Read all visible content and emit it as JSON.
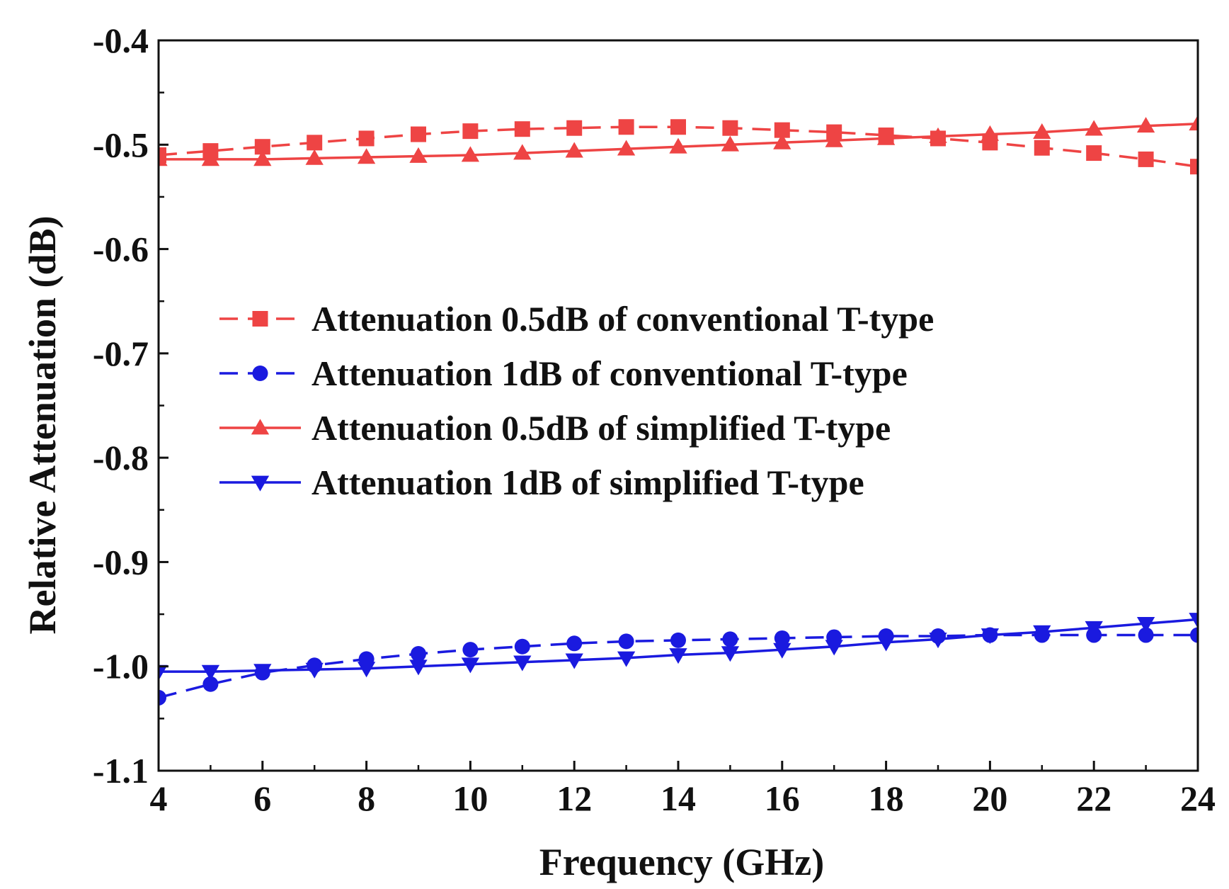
{
  "chart_data": {
    "type": "line",
    "title": "",
    "xlabel": "Frequency (GHz)",
    "ylabel": "Relative Attenuation (dB)",
    "xlim": [
      4,
      24
    ],
    "ylim": [
      -1.1,
      -0.4
    ],
    "xticks": [
      4,
      6,
      8,
      10,
      12,
      14,
      16,
      18,
      20,
      22,
      24
    ],
    "xtick_labels": [
      "4",
      "6",
      "8",
      "10",
      "12",
      "14",
      "16",
      "18",
      "20",
      "22",
      "24"
    ],
    "yticks": [
      -0.4,
      -0.5,
      -0.6,
      -0.7,
      -0.8,
      -0.9,
      -1.0,
      -1.1
    ],
    "ytick_labels": [
      "-0.4",
      "-0.5",
      "-0.6",
      "-0.7",
      "-0.8",
      "-0.9",
      "-1.0",
      "-1.1"
    ],
    "grid": false,
    "legend_position": "center-left",
    "x": [
      4,
      5,
      6,
      7,
      8,
      9,
      10,
      11,
      12,
      13,
      14,
      15,
      16,
      17,
      18,
      19,
      20,
      21,
      22,
      23,
      24
    ],
    "series": [
      {
        "name": "Attenuation 0.5dB of conventional T-type",
        "color": "#ee4444",
        "line": "dashed",
        "marker": "square",
        "values": [
          -0.51,
          -0.506,
          -0.502,
          -0.498,
          -0.494,
          -0.49,
          -0.487,
          -0.485,
          -0.484,
          -0.483,
          -0.483,
          -0.484,
          -0.486,
          -0.488,
          -0.491,
          -0.494,
          -0.498,
          -0.503,
          -0.508,
          -0.514,
          -0.521
        ]
      },
      {
        "name": "Attenuation 1dB of conventional T-type",
        "color": "#1a1adf",
        "line": "dashed",
        "marker": "circle",
        "values": [
          -1.03,
          -1.017,
          -1.006,
          -0.999,
          -0.993,
          -0.988,
          -0.984,
          -0.981,
          -0.978,
          -0.976,
          -0.975,
          -0.974,
          -0.973,
          -0.972,
          -0.971,
          -0.971,
          -0.97,
          -0.97,
          -0.97,
          -0.97,
          -0.97
        ]
      },
      {
        "name": "Attenuation 0.5dB of simplified T-type",
        "color": "#ee4444",
        "line": "solid",
        "marker": "triangle-up",
        "values": [
          -0.514,
          -0.514,
          -0.514,
          -0.513,
          -0.512,
          -0.511,
          -0.51,
          -0.508,
          -0.506,
          -0.504,
          -0.502,
          -0.5,
          -0.498,
          -0.496,
          -0.494,
          -0.492,
          -0.49,
          -0.488,
          -0.485,
          -0.482,
          -0.48
        ]
      },
      {
        "name": "Attenuation 1dB of simplified T-type",
        "color": "#1a1adf",
        "line": "solid",
        "marker": "triangle-down",
        "values": [
          -1.005,
          -1.005,
          -1.004,
          -1.003,
          -1.002,
          -1.0,
          -0.998,
          -0.996,
          -0.994,
          -0.992,
          -0.989,
          -0.987,
          -0.984,
          -0.981,
          -0.977,
          -0.974,
          -0.97,
          -0.967,
          -0.963,
          -0.959,
          -0.955
        ]
      }
    ]
  }
}
